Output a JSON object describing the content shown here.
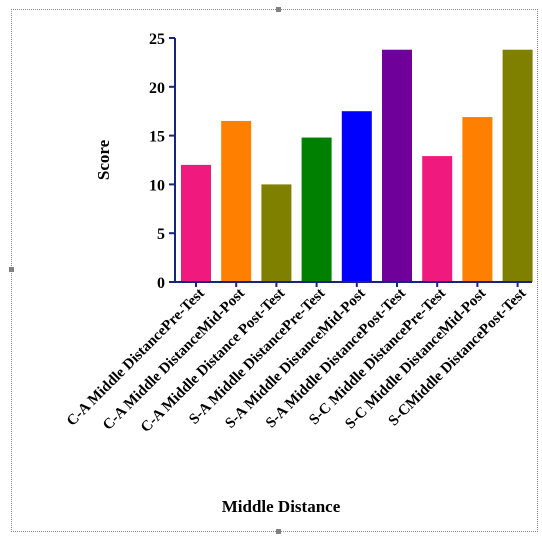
{
  "chart_data": {
    "type": "bar",
    "xlabel": "Middle Distance",
    "ylabel": "Score",
    "ylim": [
      0,
      25
    ],
    "yticks": [
      0,
      5,
      10,
      15,
      20,
      25
    ],
    "grid": false,
    "categories": [
      "C-A Middle DistancePre-Test",
      "C-A Middle DistanceMid-Post",
      "C-A Middle Distance Post-Test",
      "S-A Middle DistancePre-Test",
      "S-A Middle DistanceMid-Post",
      "S-A Middle DistancePost-Test",
      "S-C Middle DistancePre-Test",
      "S-C Middle DistanceMid-Post",
      "S-CMiddle DistancePost-Test"
    ],
    "values": [
      12,
      16.5,
      10,
      14.8,
      17.5,
      23.8,
      12.9,
      16.9,
      23.8
    ],
    "colors": [
      "#f0197d",
      "#ff7f00",
      "#808000",
      "#008000",
      "#0000ff",
      "#70009a",
      "#f0197d",
      "#ff7f00",
      "#808000"
    ]
  }
}
